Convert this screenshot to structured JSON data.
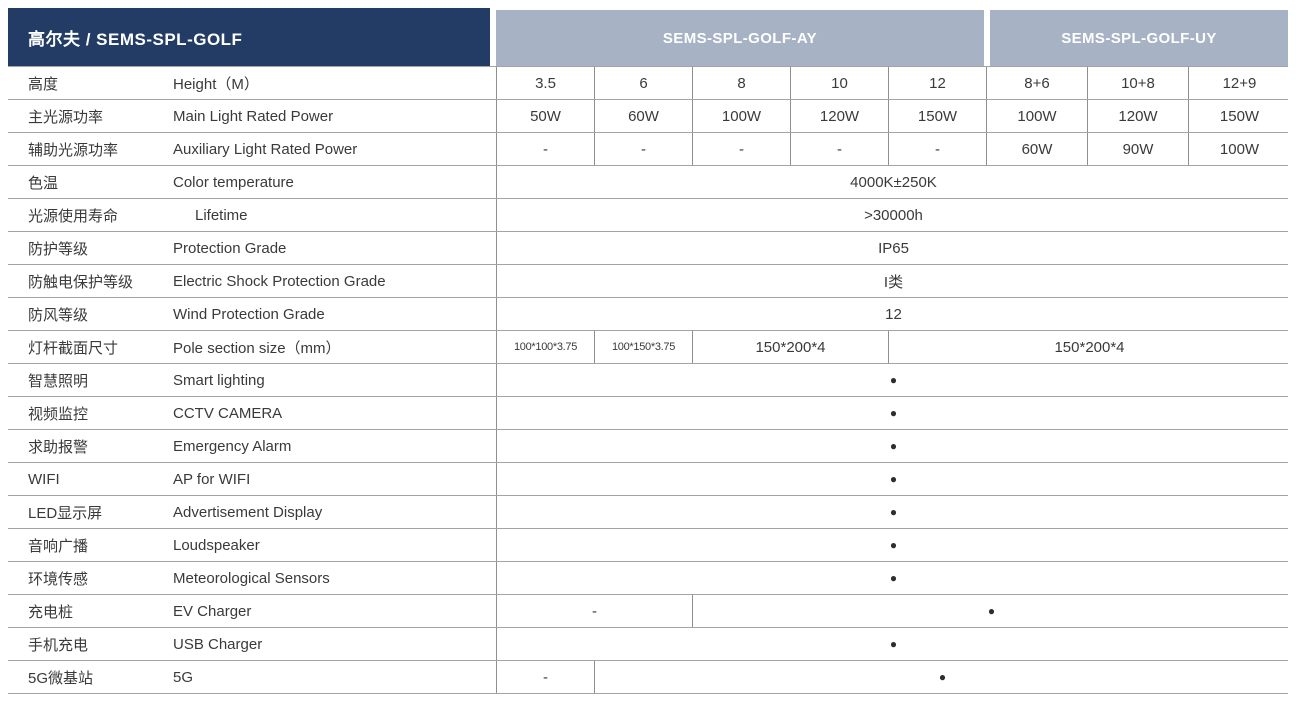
{
  "header": {
    "product_title": "高尔夫 / SEMS-SPL-GOLF",
    "series_ay": "SEMS-SPL-GOLF-AY",
    "series_uy": "SEMS-SPL-GOLF-UY"
  },
  "colors": {
    "navy_header": "#223C66",
    "steel_header": "#A7B3C5",
    "border": "#8F8F8F",
    "text": "#3A3A3A"
  },
  "legend": {
    "dot": "●",
    "dash": "-"
  },
  "rows": [
    {
      "zh": "高度",
      "en": "Height（M）",
      "cells": [
        {
          "text": "3.5",
          "span": 1
        },
        {
          "text": "6",
          "span": 1
        },
        {
          "text": "8",
          "span": 1
        },
        {
          "text": "10",
          "span": 1
        },
        {
          "text": "12",
          "span": 1
        },
        {
          "text": "8+6",
          "span": 1
        },
        {
          "text": "10+8",
          "span": 1
        },
        {
          "text": "12+9",
          "span": 1
        }
      ]
    },
    {
      "zh": "主光源功率",
      "en": "Main Light Rated Power",
      "cells": [
        {
          "text": "50W",
          "span": 1
        },
        {
          "text": "60W",
          "span": 1
        },
        {
          "text": "100W",
          "span": 1
        },
        {
          "text": "120W",
          "span": 1
        },
        {
          "text": "150W",
          "span": 1
        },
        {
          "text": "100W",
          "span": 1
        },
        {
          "text": "120W",
          "span": 1
        },
        {
          "text": "150W",
          "span": 1
        }
      ]
    },
    {
      "zh": "辅助光源功率",
      "en": "Auxiliary Light Rated Power",
      "cells": [
        {
          "text": "-",
          "span": 1
        },
        {
          "text": "-",
          "span": 1
        },
        {
          "text": "-",
          "span": 1
        },
        {
          "text": "-",
          "span": 1
        },
        {
          "text": "-",
          "span": 1
        },
        {
          "text": "60W",
          "span": 1
        },
        {
          "text": "90W",
          "span": 1
        },
        {
          "text": "100W",
          "span": 1
        }
      ]
    },
    {
      "zh": "色温",
      "en": "Color temperature",
      "cells": [
        {
          "text": "4000K±250K",
          "span": 8
        }
      ]
    },
    {
      "zh": "光源使用寿命",
      "en": "Lifetime",
      "cells": [
        {
          "text": ">30000h",
          "span": 8
        }
      ]
    },
    {
      "zh": "防护等级",
      "en": "Protection Grade",
      "cells": [
        {
          "text": "IP65",
          "span": 8
        }
      ]
    },
    {
      "zh": "防触电保护等级",
      "en": "Electric Shock Protection Grade",
      "cells": [
        {
          "text": "I类",
          "span": 8
        }
      ]
    },
    {
      "zh": "防风等级",
      "en": "Wind Protection Grade",
      "cells": [
        {
          "text": "12",
          "span": 8
        }
      ]
    },
    {
      "zh": "灯杆截面尺寸",
      "en": "Pole section size（mm）",
      "cells": [
        {
          "text": "100*100*3.75",
          "span": 1,
          "small": true
        },
        {
          "text": "100*150*3.75",
          "span": 1,
          "small": true
        },
        {
          "text": "150*200*4",
          "span": 2
        },
        {
          "text": "150*200*4",
          "span": 4
        }
      ]
    },
    {
      "zh": "智慧照明",
      "en": "Smart lighting",
      "cells": [
        {
          "text": "●",
          "span": 8
        }
      ]
    },
    {
      "zh": "视频监控",
      "en": "CCTV CAMERA",
      "cells": [
        {
          "text": "●",
          "span": 8
        }
      ]
    },
    {
      "zh": "求助报警",
      "en": "Emergency Alarm",
      "cells": [
        {
          "text": "●",
          "span": 8
        }
      ]
    },
    {
      "zh": "WIFI",
      "en": "AP for WIFI",
      "cells": [
        {
          "text": "●",
          "span": 8
        }
      ]
    },
    {
      "zh": "LED显示屏",
      "en": "Advertisement Display",
      "cells": [
        {
          "text": "●",
          "span": 8
        }
      ]
    },
    {
      "zh": "音响广播",
      "en": "Loudspeaker",
      "cells": [
        {
          "text": "●",
          "span": 8
        }
      ]
    },
    {
      "zh": "环境传感",
      "en": "Meteorological Sensors",
      "cells": [
        {
          "text": "●",
          "span": 8
        }
      ]
    },
    {
      "zh": "充电桩",
      "en": "EV Charger",
      "cells": [
        {
          "text": "-",
          "span": 2
        },
        {
          "text": "●",
          "span": 6
        }
      ]
    },
    {
      "zh": "手机充电",
      "en": "USB Charger",
      "cells": [
        {
          "text": "●",
          "span": 8
        }
      ]
    },
    {
      "zh": "5G微基站",
      "en": "5G",
      "cells": [
        {
          "text": "-",
          "span": 1
        },
        {
          "text": "●",
          "span": 7
        }
      ]
    }
  ]
}
